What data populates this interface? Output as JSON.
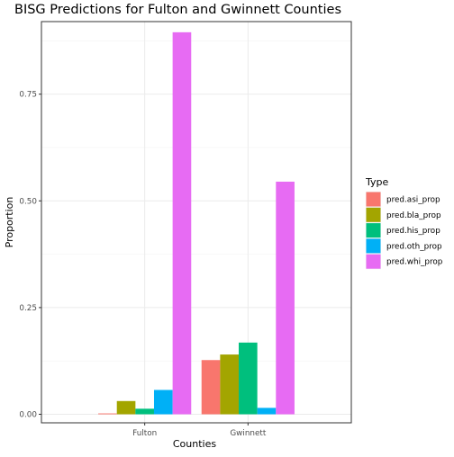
{
  "chart_data": {
    "type": "bar",
    "title": "BISG Predictions for Fulton and Gwinnett Counties",
    "xlabel": "Counties",
    "ylabel": "Proportion",
    "categories": [
      "Fulton",
      "Gwinnett"
    ],
    "ylim": [
      -0.02,
      0.92
    ],
    "yticks": [
      0.0,
      0.25,
      0.5,
      0.75
    ],
    "ytick_labels": [
      "0.00",
      "0.25",
      "0.50",
      "0.75"
    ],
    "grid": true,
    "legend": {
      "title": "Type",
      "position": "right"
    },
    "series": [
      {
        "name": "pred.asi_prop",
        "color": "#F8766D",
        "values": [
          0.002,
          0.127
        ]
      },
      {
        "name": "pred.bla_prop",
        "color": "#A3A500",
        "values": [
          0.031,
          0.14
        ]
      },
      {
        "name": "pred.his_prop",
        "color": "#00BF7D",
        "values": [
          0.013,
          0.168
        ]
      },
      {
        "name": "pred.oth_prop",
        "color": "#00B0F6",
        "values": [
          0.057,
          0.015
        ]
      },
      {
        "name": "pred.whi_prop",
        "color": "#E76BF3",
        "values": [
          0.895,
          0.545
        ]
      }
    ]
  }
}
